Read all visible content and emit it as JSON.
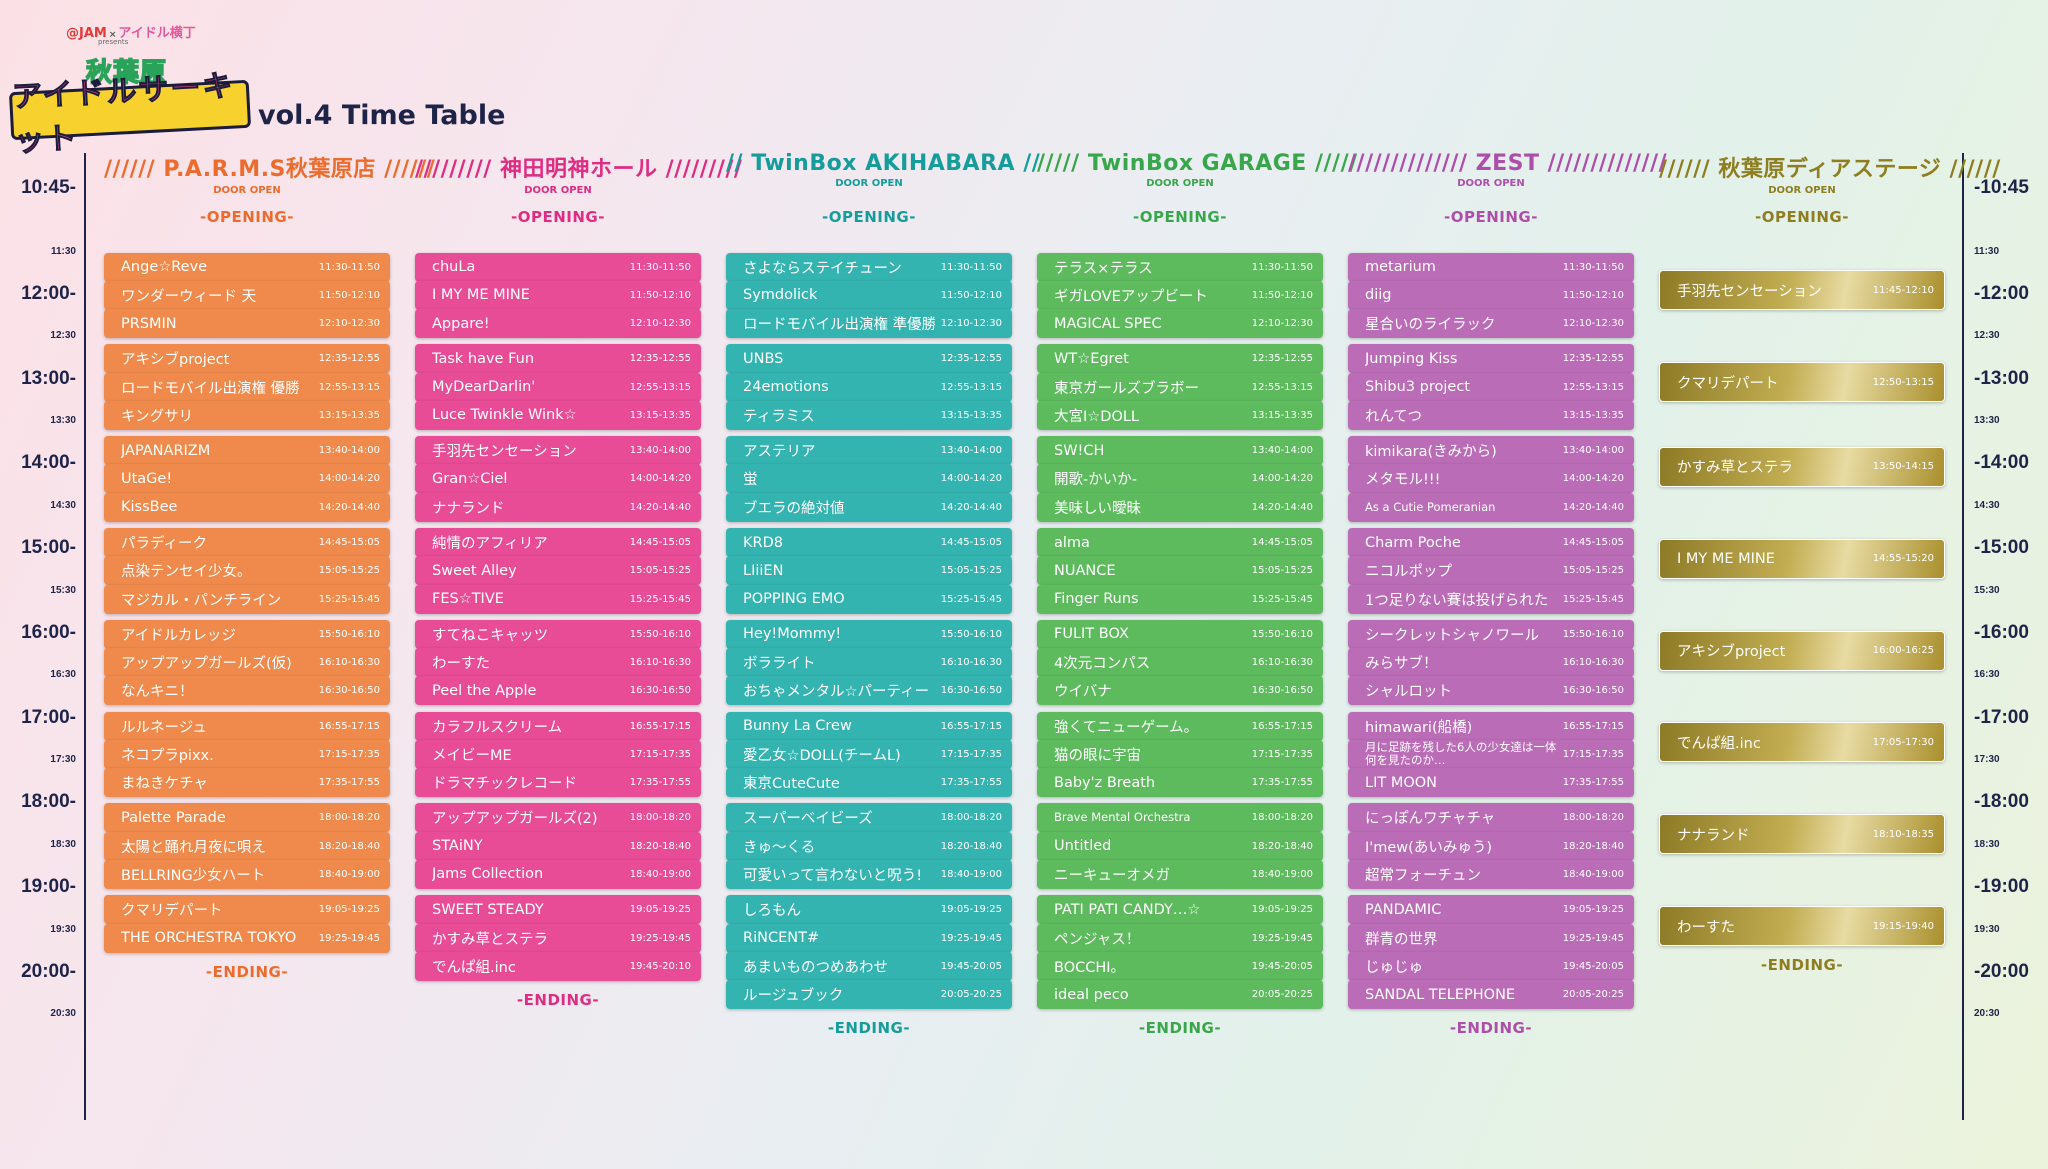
{
  "logo": {
    "jam": "@JAM",
    "x": "×",
    "idol": "アイドル横丁",
    "presents": "presents",
    "akiba": "秋葉原",
    "main": "アイドルサーキット"
  },
  "page_title": "vol.4 Time Table",
  "time_labels_left": {
    "t1045": "10:45-",
    "t1130": "11:30",
    "t1200": "12:00-",
    "t1230": "12:30",
    "t1300": "13:00-",
    "t1330": "13:30",
    "t1400": "14:00-",
    "t1430": "14:30",
    "t1500": "15:00-",
    "t1530": "15:30",
    "t1600": "16:00-",
    "t1630": "16:30",
    "t1700": "17:00-",
    "t1730": "17:30",
    "t1800": "18:00-",
    "t1830": "18:30",
    "t1900": "19:00-",
    "t1930": "19:30",
    "t2000": "20:00-",
    "t2030": "20:30"
  },
  "time_labels_right": {
    "t1045": "-10:45",
    "t1130": "11:30",
    "t1200": "-12:00",
    "t1230": "12:30",
    "t1300": "-13:00",
    "t1330": "13:30",
    "t1400": "-14:00",
    "t1430": "14:30",
    "t1500": "-15:00",
    "t1530": "15:30",
    "t1600": "-16:00",
    "t1630": "16:30",
    "t1700": "-17:00",
    "t1730": "17:30",
    "t1800": "-18:00",
    "t1830": "18:30",
    "t1900": "-19:00",
    "t1930": "19:30",
    "t2000": "-20:00",
    "t2030": "20:30"
  },
  "colors": {
    "parms": "#f08a4c",
    "kanda": "#e84c97",
    "akihabara": "#34b4b0",
    "garage": "#5dbb5e",
    "zest": "#bb6cb7",
    "dear": "#a98f2c"
  },
  "stages": {
    "parms": {
      "header": "////// P.A.R.M.S秋葉原店 //////",
      "door_open": "DOOR OPEN",
      "opening": "-OPENING-",
      "ending": "-ENDING-",
      "acts": [
        {
          "name": "Ange☆Reve",
          "time": "11:30-11:50"
        },
        {
          "name": "ワンダーウィード 天",
          "time": "11:50-12:10"
        },
        {
          "name": "PRSMIN",
          "time": "12:10-12:30"
        },
        {
          "name": "アキシブproject",
          "time": "12:35-12:55"
        },
        {
          "name": "ロードモバイル出演権 優勝",
          "time": "12:55-13:15"
        },
        {
          "name": "キングサリ",
          "time": "13:15-13:35"
        },
        {
          "name": "JAPANARIZM",
          "time": "13:40-14:00"
        },
        {
          "name": "UtaGe!",
          "time": "14:00-14:20"
        },
        {
          "name": "KissBee",
          "time": "14:20-14:40"
        },
        {
          "name": "パラディーク",
          "time": "14:45-15:05"
        },
        {
          "name": "点染テンセイ少女。",
          "time": "15:05-15:25"
        },
        {
          "name": "マジカル・パンチライン",
          "time": "15:25-15:45"
        },
        {
          "name": "アイドルカレッジ",
          "time": "15:50-16:10"
        },
        {
          "name": "アップアップガールズ(仮)",
          "time": "16:10-16:30"
        },
        {
          "name": "なんキニ！",
          "time": "16:30-16:50"
        },
        {
          "name": "ルルネージュ",
          "time": "16:55-17:15"
        },
        {
          "name": "ネコプラpixx.",
          "time": "17:15-17:35"
        },
        {
          "name": "まねきケチャ",
          "time": "17:35-17:55"
        },
        {
          "name": "Palette Parade",
          "time": "18:00-18:20"
        },
        {
          "name": "太陽と踊れ月夜に唄え",
          "time": "18:20-18:40"
        },
        {
          "name": "BELLRING少女ハート",
          "time": "18:40-19:00"
        },
        {
          "name": "クマリデパート",
          "time": "19:05-19:25"
        },
        {
          "name": "THE ORCHESTRA TOKYO",
          "time": "19:25-19:45"
        }
      ]
    },
    "kanda": {
      "header": "///////// 神田明神ホール /////////",
      "door_open": "DOOR OPEN",
      "opening": "-OPENING-",
      "ending": "-ENDING-",
      "acts": [
        {
          "name": "chuLa",
          "time": "11:30-11:50"
        },
        {
          "name": "I MY ME MINE",
          "time": "11:50-12:10"
        },
        {
          "name": "Appare!",
          "time": "12:10-12:30"
        },
        {
          "name": "Task have Fun",
          "time": "12:35-12:55"
        },
        {
          "name": "MyDearDarlin'",
          "time": "12:55-13:15"
        },
        {
          "name": "Luce Twinkle Wink☆",
          "time": "13:15-13:35"
        },
        {
          "name": "手羽先センセーション",
          "time": "13:40-14:00"
        },
        {
          "name": "Gran☆Ciel",
          "time": "14:00-14:20"
        },
        {
          "name": "ナナランド",
          "time": "14:20-14:40"
        },
        {
          "name": "純情のアフィリア",
          "time": "14:45-15:05"
        },
        {
          "name": "Sweet Alley",
          "time": "15:05-15:25"
        },
        {
          "name": "FES☆TIVE",
          "time": "15:25-15:45"
        },
        {
          "name": "すてねこキャッツ",
          "time": "15:50-16:10"
        },
        {
          "name": "わーすた",
          "time": "16:10-16:30"
        },
        {
          "name": "Peel the Apple",
          "time": "16:30-16:50"
        },
        {
          "name": "カラフルスクリーム",
          "time": "16:55-17:15"
        },
        {
          "name": "メイビーME",
          "time": "17:15-17:35"
        },
        {
          "name": "ドラマチックレコード",
          "time": "17:35-17:55"
        },
        {
          "name": "アップアップガールズ(2)",
          "time": "18:00-18:20"
        },
        {
          "name": "STAiNY",
          "time": "18:20-18:40"
        },
        {
          "name": "Jams Collection",
          "time": "18:40-19:00"
        },
        {
          "name": "SWEET STEADY",
          "time": "19:05-19:25"
        },
        {
          "name": "かすみ草とステラ",
          "time": "19:25-19:45"
        },
        {
          "name": "でんぱ組.inc",
          "time": "19:45-20:10"
        }
      ]
    },
    "akihabara": {
      "header": "// TwinBox AKIHABARA //",
      "door_open": "DOOR OPEN",
      "opening": "-OPENING-",
      "ending": "-ENDING-",
      "acts": [
        {
          "name": "さよならステイチューン",
          "time": "11:30-11:50"
        },
        {
          "name": "Symdolick",
          "time": "11:50-12:10"
        },
        {
          "name": "ロードモバイル出演権 準優勝",
          "time": "12:10-12:30"
        },
        {
          "name": "UNBS",
          "time": "12:35-12:55"
        },
        {
          "name": "24emotions",
          "time": "12:55-13:15"
        },
        {
          "name": "ティラミス",
          "time": "13:15-13:35"
        },
        {
          "name": "アステリア",
          "time": "13:40-14:00"
        },
        {
          "name": "蛍",
          "time": "14:00-14:20"
        },
        {
          "name": "ブエラの絶対値",
          "time": "14:20-14:40"
        },
        {
          "name": "KRD8",
          "time": "14:45-15:05"
        },
        {
          "name": "LIiiEN",
          "time": "15:05-15:25"
        },
        {
          "name": "POPPING EMO",
          "time": "15:25-15:45"
        },
        {
          "name": "Hey!Mommy!",
          "time": "15:50-16:10"
        },
        {
          "name": "ボラライト",
          "time": "16:10-16:30"
        },
        {
          "name": "おちゃメンタル☆パーティー",
          "time": "16:30-16:50"
        },
        {
          "name": "Bunny La Crew",
          "time": "16:55-17:15"
        },
        {
          "name": "愛乙女☆DOLL(チームL)",
          "time": "17:15-17:35"
        },
        {
          "name": "東京CuteCute",
          "time": "17:35-17:55"
        },
        {
          "name": "スーパーベイビーズ",
          "time": "18:00-18:20"
        },
        {
          "name": "きゅ～くる",
          "time": "18:20-18:40"
        },
        {
          "name": "可愛いって言わないと呪う!",
          "time": "18:40-19:00"
        },
        {
          "name": "しろもん",
          "time": "19:05-19:25"
        },
        {
          "name": "RiNCENT#",
          "time": "19:25-19:45"
        },
        {
          "name": "あまいものつめあわせ",
          "time": "19:45-20:05"
        },
        {
          "name": "ルージュブック",
          "time": "20:05-20:25"
        }
      ]
    },
    "garage": {
      "header": "///// TwinBox GARAGE /////",
      "door_open": "DOOR OPEN",
      "opening": "-OPENING-",
      "ending": "-ENDING-",
      "acts": [
        {
          "name": "テラス×テラス",
          "time": "11:30-11:50"
        },
        {
          "name": "ギガLOVEアップビート",
          "time": "11:50-12:10"
        },
        {
          "name": "MAGICAL SPEC",
          "time": "12:10-12:30"
        },
        {
          "name": "WT☆Egret",
          "time": "12:35-12:55"
        },
        {
          "name": "東京ガールズブラボー",
          "time": "12:55-13:15"
        },
        {
          "name": "大宮I☆DOLL",
          "time": "13:15-13:35"
        },
        {
          "name": "SW!CH",
          "time": "13:40-14:00"
        },
        {
          "name": "開歌-かいか-",
          "time": "14:00-14:20"
        },
        {
          "name": "美味しい曖昧",
          "time": "14:20-14:40"
        },
        {
          "name": "alma",
          "time": "14:45-15:05"
        },
        {
          "name": "NUANCE",
          "time": "15:05-15:25"
        },
        {
          "name": "Finger Runs",
          "time": "15:25-15:45"
        },
        {
          "name": "FULIT BOX",
          "time": "15:50-16:10"
        },
        {
          "name": "4次元コンパス",
          "time": "16:10-16:30"
        },
        {
          "name": "ウイバナ",
          "time": "16:30-16:50"
        },
        {
          "name": "強くてニューゲーム。",
          "time": "16:55-17:15"
        },
        {
          "name": "猫の眼に宇宙",
          "time": "17:15-17:35"
        },
        {
          "name": "Baby'z Breath",
          "time": "17:35-17:55"
        },
        {
          "name": "Brave Mental Orchestra",
          "time": "18:00-18:20"
        },
        {
          "name": "Untitled",
          "time": "18:20-18:40"
        },
        {
          "name": "ニーキューオメガ",
          "time": "18:40-19:00"
        },
        {
          "name": "PATI PATI CANDY…☆",
          "time": "19:05-19:25"
        },
        {
          "name": "ペンジャス！",
          "time": "19:25-19:45"
        },
        {
          "name": "BOCCHI。",
          "time": "19:45-20:05"
        },
        {
          "name": "ideal peco",
          "time": "20:05-20:25"
        }
      ]
    },
    "zest": {
      "header": "////////////// ZEST //////////////",
      "door_open": "DOOR OPEN",
      "opening": "-OPENING-",
      "ending": "-ENDING-",
      "acts": [
        {
          "name": "metarium",
          "time": "11:30-11:50"
        },
        {
          "name": "diig",
          "time": "11:50-12:10"
        },
        {
          "name": "星合いのライラック",
          "time": "12:10-12:30"
        },
        {
          "name": "Jumping Kiss",
          "time": "12:35-12:55"
        },
        {
          "name": "Shibu3 project",
          "time": "12:55-13:15"
        },
        {
          "name": "れんてつ",
          "time": "13:15-13:35"
        },
        {
          "name": "kimikara(きみから)",
          "time": "13:40-14:00"
        },
        {
          "name": "メタモル!!!",
          "time": "14:00-14:20"
        },
        {
          "name": "As a Cutie Pomeranian",
          "time": "14:20-14:40"
        },
        {
          "name": "Charm Poche",
          "time": "14:45-15:05"
        },
        {
          "name": "ニコルポップ",
          "time": "15:05-15:25"
        },
        {
          "name": "1つ足りない賽は投げられた",
          "time": "15:25-15:45"
        },
        {
          "name": "シークレットシャノワール",
          "time": "15:50-16:10"
        },
        {
          "name": "みらサブ！",
          "time": "16:10-16:30"
        },
        {
          "name": "シャルロット",
          "time": "16:30-16:50"
        },
        {
          "name": "himawari(船橋)",
          "time": "16:55-17:15"
        },
        {
          "name": "月に足跡を残した6人の少女達は一体何を見たのか…",
          "time": "17:15-17:35"
        },
        {
          "name": "LIT MOON",
          "time": "17:35-17:55"
        },
        {
          "name": "にっぽんワチャチャ",
          "time": "18:00-18:20"
        },
        {
          "name": "I'mew(あいみゅう)",
          "time": "18:20-18:40"
        },
        {
          "name": "超常フォーチュン",
          "time": "18:40-19:00"
        },
        {
          "name": "PANDAMIC",
          "time": "19:05-19:25"
        },
        {
          "name": "群青の世界",
          "time": "19:25-19:45"
        },
        {
          "name": "じゅじゅ",
          "time": "19:45-20:05"
        },
        {
          "name": "SANDAL TELEPHONE",
          "time": "20:05-20:25"
        }
      ]
    },
    "dear": {
      "header": "////// 秋葉原ディアステージ //////",
      "door_open": "DOOR OPEN",
      "opening": "-OPENING-",
      "ending": "-ENDING-",
      "acts": [
        {
          "name": "手羽先センセーション",
          "time": "11:45-12:10"
        },
        {
          "name": "クマリデパート",
          "time": "12:50-13:15"
        },
        {
          "name": "かすみ草とステラ",
          "time": "13:50-14:15"
        },
        {
          "name": "I MY ME MINE",
          "time": "14:55-15:20"
        },
        {
          "name": "アキシブproject",
          "time": "16:00-16:25"
        },
        {
          "name": "でんぱ組.inc",
          "time": "17:05-17:30"
        },
        {
          "name": "ナナランド",
          "time": "18:10-18:35"
        },
        {
          "name": "わーすた",
          "time": "19:15-19:40"
        }
      ]
    }
  }
}
